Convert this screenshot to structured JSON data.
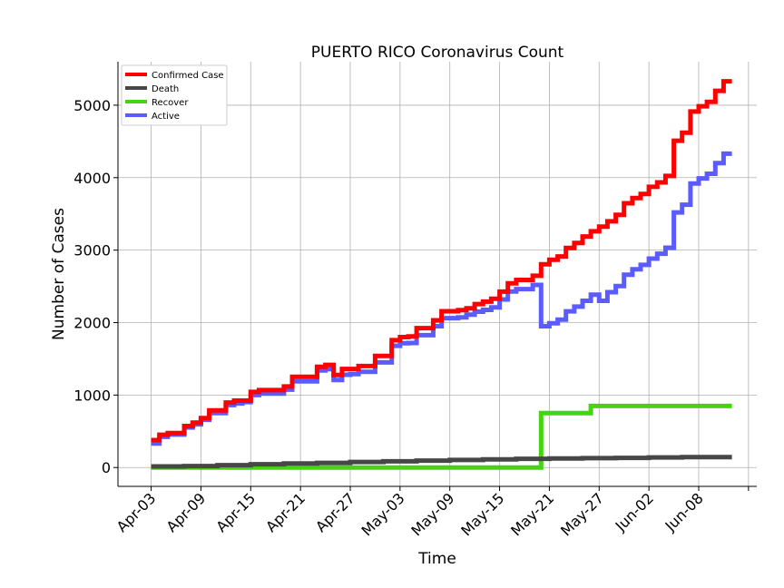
{
  "chart_data": {
    "type": "line",
    "title": "PUERTO RICO Coronavirus Count",
    "xlabel": "Time",
    "ylabel": "Number of Cases",
    "x_tick_labels": [
      "Apr-03",
      "Apr-09",
      "Apr-15",
      "Apr-21",
      "Apr-27",
      "May-03",
      "May-09",
      "May-15",
      "May-21",
      "May-27",
      "Jun-02",
      "Jun-08"
    ],
    "y_ticks": [
      0,
      1000,
      2000,
      3000,
      4000,
      5000
    ],
    "xlim": [
      "2020-03-30",
      "2020-06-15"
    ],
    "ylim": [
      -260,
      5600
    ],
    "grid": true,
    "legend_position": "top-left",
    "series": [
      {
        "name": "Confirmed Case",
        "color": "#ff0000",
        "points": [
          [
            "2020-04-03",
            378
          ],
          [
            "2020-04-04",
            452
          ],
          [
            "2020-04-05",
            475
          ],
          [
            "2020-04-06",
            475
          ],
          [
            "2020-04-07",
            573
          ],
          [
            "2020-04-08",
            620
          ],
          [
            "2020-04-09",
            683
          ],
          [
            "2020-04-10",
            788
          ],
          [
            "2020-04-11",
            788
          ],
          [
            "2020-04-12",
            897
          ],
          [
            "2020-04-13",
            923
          ],
          [
            "2020-04-14",
            923
          ],
          [
            "2020-04-15",
            1043
          ],
          [
            "2020-04-16",
            1068
          ],
          [
            "2020-04-17",
            1068
          ],
          [
            "2020-04-18",
            1068
          ],
          [
            "2020-04-19",
            1118
          ],
          [
            "2020-04-20",
            1252
          ],
          [
            "2020-04-21",
            1252
          ],
          [
            "2020-04-22",
            1252
          ],
          [
            "2020-04-23",
            1389
          ],
          [
            "2020-04-24",
            1416
          ],
          [
            "2020-04-25",
            1276
          ],
          [
            "2020-04-26",
            1360
          ],
          [
            "2020-04-27",
            1360
          ],
          [
            "2020-04-28",
            1400
          ],
          [
            "2020-04-29",
            1400
          ],
          [
            "2020-04-30",
            1539
          ],
          [
            "2020-05-01",
            1539
          ],
          [
            "2020-05-02",
            1757
          ],
          [
            "2020-05-03",
            1800
          ],
          [
            "2020-05-04",
            1808
          ],
          [
            "2020-05-05",
            1924
          ],
          [
            "2020-05-06",
            1924
          ],
          [
            "2020-05-07",
            2031
          ],
          [
            "2020-05-08",
            2156
          ],
          [
            "2020-05-09",
            2156
          ],
          [
            "2020-05-10",
            2173
          ],
          [
            "2020-05-11",
            2198
          ],
          [
            "2020-05-12",
            2256
          ],
          [
            "2020-05-13",
            2289
          ],
          [
            "2020-05-14",
            2329
          ],
          [
            "2020-05-15",
            2427
          ],
          [
            "2020-05-16",
            2542
          ],
          [
            "2020-05-17",
            2589
          ],
          [
            "2020-05-18",
            2589
          ],
          [
            "2020-05-19",
            2646
          ],
          [
            "2020-05-20",
            2805
          ],
          [
            "2020-05-21",
            2866
          ],
          [
            "2020-05-22",
            2913
          ],
          [
            "2020-05-23",
            3030
          ],
          [
            "2020-05-24",
            3100
          ],
          [
            "2020-05-25",
            3189
          ],
          [
            "2020-05-26",
            3260
          ],
          [
            "2020-05-27",
            3324
          ],
          [
            "2020-05-28",
            3397
          ],
          [
            "2020-05-29",
            3486
          ],
          [
            "2020-05-30",
            3647
          ],
          [
            "2020-05-31",
            3718
          ],
          [
            "2020-06-01",
            3776
          ],
          [
            "2020-06-02",
            3873
          ],
          [
            "2020-06-03",
            3935
          ],
          [
            "2020-06-04",
            4023
          ],
          [
            "2020-06-05",
            4510
          ],
          [
            "2020-06-06",
            4620
          ],
          [
            "2020-06-07",
            4912
          ],
          [
            "2020-06-08",
            4985
          ],
          [
            "2020-06-09",
            5046
          ],
          [
            "2020-06-10",
            5198
          ],
          [
            "2020-06-11",
            5330
          ],
          [
            "2020-06-12",
            5330
          ]
        ]
      },
      {
        "name": "Death",
        "color": "#474747",
        "points": [
          [
            "2020-04-03",
            15
          ],
          [
            "2020-04-07",
            20
          ],
          [
            "2020-04-11",
            33
          ],
          [
            "2020-04-15",
            45
          ],
          [
            "2020-04-19",
            56
          ],
          [
            "2020-04-23",
            64
          ],
          [
            "2020-04-27",
            77
          ],
          [
            "2020-05-01",
            86
          ],
          [
            "2020-05-05",
            95
          ],
          [
            "2020-05-09",
            104
          ],
          [
            "2020-05-13",
            113
          ],
          [
            "2020-05-17",
            121
          ],
          [
            "2020-05-21",
            126
          ],
          [
            "2020-05-25",
            129
          ],
          [
            "2020-05-29",
            133
          ],
          [
            "2020-06-02",
            140
          ],
          [
            "2020-06-06",
            143
          ],
          [
            "2020-06-10",
            145
          ],
          [
            "2020-06-12",
            145
          ]
        ]
      },
      {
        "name": "Recover",
        "color": "#44d411",
        "points": [
          [
            "2020-04-03",
            0
          ],
          [
            "2020-05-20",
            0
          ],
          [
            "2020-05-20",
            750
          ],
          [
            "2020-05-26",
            750
          ],
          [
            "2020-05-26",
            850
          ],
          [
            "2020-06-12",
            850
          ]
        ]
      },
      {
        "name": "Active",
        "color": "#5b5bff",
        "points": [
          [
            "2020-04-03",
            332
          ],
          [
            "2020-04-04",
            424
          ],
          [
            "2020-04-05",
            455
          ],
          [
            "2020-04-06",
            455
          ],
          [
            "2020-04-07",
            553
          ],
          [
            "2020-04-08",
            597
          ],
          [
            "2020-04-09",
            659
          ],
          [
            "2020-04-10",
            752
          ],
          [
            "2020-04-11",
            752
          ],
          [
            "2020-04-12",
            862
          ],
          [
            "2020-04-13",
            884
          ],
          [
            "2020-04-14",
            903
          ],
          [
            "2020-04-15",
            1000
          ],
          [
            "2020-04-16",
            1020
          ],
          [
            "2020-04-17",
            1020
          ],
          [
            "2020-04-18",
            1020
          ],
          [
            "2020-04-19",
            1075
          ],
          [
            "2020-04-20",
            1190
          ],
          [
            "2020-04-21",
            1190
          ],
          [
            "2020-04-22",
            1190
          ],
          [
            "2020-04-23",
            1340
          ],
          [
            "2020-04-24",
            1358
          ],
          [
            "2020-04-25",
            1208
          ],
          [
            "2020-04-26",
            1280
          ],
          [
            "2020-04-27",
            1290
          ],
          [
            "2020-04-28",
            1320
          ],
          [
            "2020-04-29",
            1320
          ],
          [
            "2020-04-30",
            1450
          ],
          [
            "2020-05-01",
            1450
          ],
          [
            "2020-05-02",
            1680
          ],
          [
            "2020-05-03",
            1715
          ],
          [
            "2020-05-04",
            1718
          ],
          [
            "2020-05-05",
            1826
          ],
          [
            "2020-05-06",
            1826
          ],
          [
            "2020-05-07",
            1950
          ],
          [
            "2020-05-08",
            2062
          ],
          [
            "2020-05-09",
            2062
          ],
          [
            "2020-05-10",
            2072
          ],
          [
            "2020-05-11",
            2110
          ],
          [
            "2020-05-12",
            2150
          ],
          [
            "2020-05-13",
            2176
          ],
          [
            "2020-05-14",
            2210
          ],
          [
            "2020-05-15",
            2320
          ],
          [
            "2020-05-16",
            2430
          ],
          [
            "2020-05-17",
            2462
          ],
          [
            "2020-05-18",
            2462
          ],
          [
            "2020-05-19",
            2520
          ],
          [
            "2020-05-20",
            1950
          ],
          [
            "2020-05-21",
            1990
          ],
          [
            "2020-05-22",
            2040
          ],
          [
            "2020-05-23",
            2155
          ],
          [
            "2020-05-24",
            2220
          ],
          [
            "2020-05-25",
            2300
          ],
          [
            "2020-05-26",
            2384
          ],
          [
            "2020-05-27",
            2300
          ],
          [
            "2020-05-28",
            2419
          ],
          [
            "2020-05-29",
            2505
          ],
          [
            "2020-05-30",
            2660
          ],
          [
            "2020-05-31",
            2735
          ],
          [
            "2020-06-01",
            2797
          ],
          [
            "2020-06-02",
            2883
          ],
          [
            "2020-06-03",
            2950
          ],
          [
            "2020-06-04",
            3033
          ],
          [
            "2020-06-05",
            3520
          ],
          [
            "2020-06-06",
            3627
          ],
          [
            "2020-06-07",
            3920
          ],
          [
            "2020-06-08",
            3990
          ],
          [
            "2020-06-09",
            4053
          ],
          [
            "2020-06-10",
            4200
          ],
          [
            "2020-06-11",
            4330
          ],
          [
            "2020-06-12",
            4330
          ]
        ]
      }
    ]
  }
}
